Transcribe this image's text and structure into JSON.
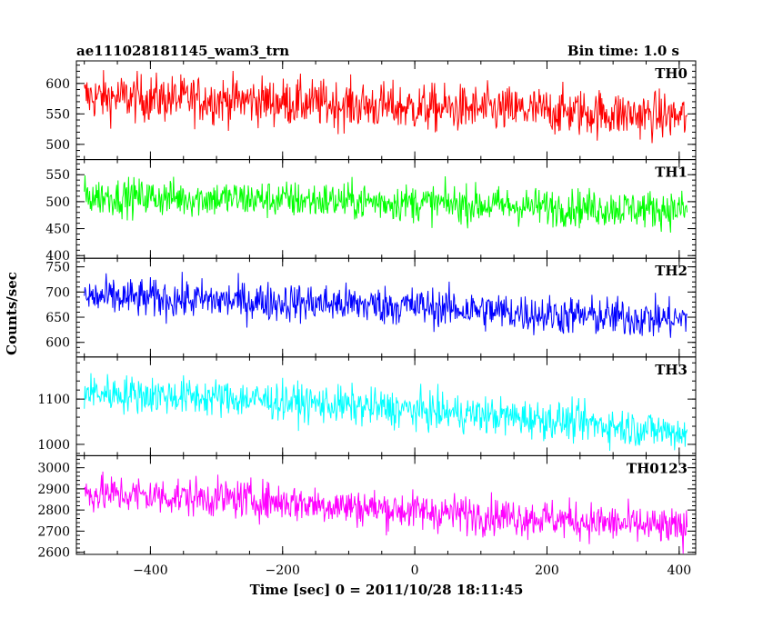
{
  "header": {
    "title": "ae111028181145_wam3_trn",
    "bin_time": "Bin time: 1.0 s"
  },
  "chart_data": {
    "type": "line",
    "x_label": "Time [sec] 0 = 2011/10/28 18:11:45",
    "y_label": "Counts/sec",
    "xlim": [
      -512,
      425
    ],
    "x_ticks": [
      -400,
      -200,
      0,
      200,
      400
    ],
    "x_range_data": [
      -500,
      412
    ],
    "panels": [
      {
        "name": "TH0",
        "color": "#ff0000",
        "ylim": [
          475,
          637
        ],
        "y_ticks": [
          500,
          550,
          600
        ],
        "trend": [
          [
            -500,
            578
          ],
          [
            -250,
            572
          ],
          [
            0,
            560
          ],
          [
            200,
            555
          ],
          [
            412,
            545
          ]
        ],
        "noise": 28
      },
      {
        "name": "TH1",
        "color": "#00ff00",
        "ylim": [
          395,
          578
        ],
        "y_ticks": [
          400,
          450,
          500,
          550
        ],
        "trend": [
          [
            -500,
            510
          ],
          [
            -250,
            505
          ],
          [
            0,
            498
          ],
          [
            200,
            490
          ],
          [
            412,
            485
          ]
        ],
        "noise": 25
      },
      {
        "name": "TH2",
        "color": "#0000ff",
        "ylim": [
          571,
          767
        ],
        "y_ticks": [
          600,
          650,
          700,
          750
        ],
        "trend": [
          [
            -500,
            690
          ],
          [
            -250,
            682
          ],
          [
            0,
            672
          ],
          [
            200,
            655
          ],
          [
            412,
            645
          ]
        ],
        "noise": 28
      },
      {
        "name": "TH3",
        "color": "#00ffff",
        "ylim": [
          975,
          1193
        ],
        "y_ticks": [
          1000,
          1100
        ],
        "trend": [
          [
            -500,
            1115
          ],
          [
            -250,
            1100
          ],
          [
            0,
            1075
          ],
          [
            200,
            1055
          ],
          [
            412,
            1025
          ]
        ],
        "noise": 30
      },
      {
        "name": "TH0123",
        "color": "#ff00ff",
        "ylim": [
          2590,
          3057
        ],
        "y_ticks": [
          2600,
          2700,
          2800,
          2900,
          3000
        ],
        "trend": [
          [
            -500,
            2880
          ],
          [
            -250,
            2850
          ],
          [
            0,
            2795
          ],
          [
            200,
            2760
          ],
          [
            412,
            2710
          ]
        ],
        "noise": 65
      }
    ]
  }
}
